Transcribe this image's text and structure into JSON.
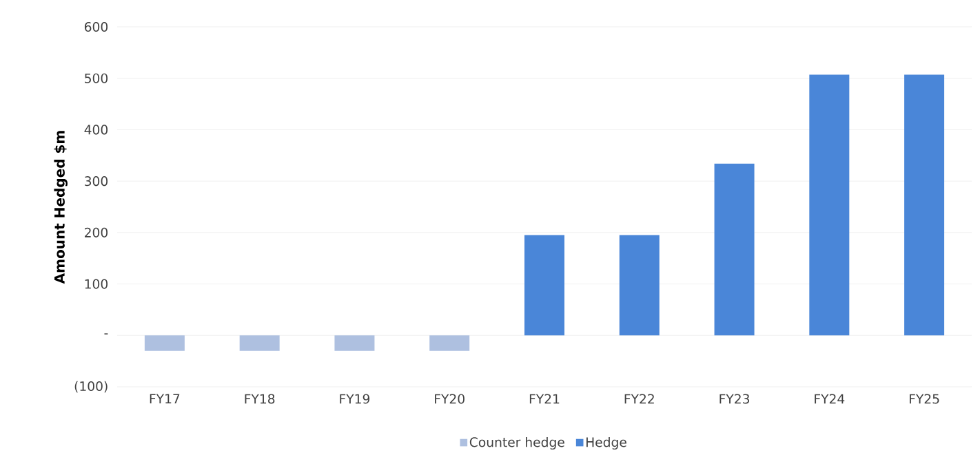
{
  "chart_data": {
    "type": "bar",
    "stacked": true,
    "ylabel": "Amount Hedged $m",
    "categories": [
      "FY17",
      "FY18",
      "FY19",
      "FY20",
      "FY21",
      "FY22",
      "FY23",
      "FY24",
      "FY25"
    ],
    "series": [
      {
        "name": "Counter hedge",
        "color": "#aec0e0",
        "values": [
          -30,
          -30,
          -30,
          -30,
          null,
          null,
          null,
          null,
          null
        ]
      },
      {
        "name": "Hedge",
        "color": "#4a86d8",
        "values": [
          null,
          null,
          null,
          null,
          195,
          195,
          334,
          507,
          507
        ]
      }
    ],
    "ylim": [
      -100,
      600
    ],
    "yticks": [
      {
        "value": -100,
        "label": "(100)"
      },
      {
        "value": 0,
        "label": "-"
      },
      100,
      200,
      300,
      400,
      500,
      600
    ],
    "grid": "y",
    "legend": "bottom"
  }
}
